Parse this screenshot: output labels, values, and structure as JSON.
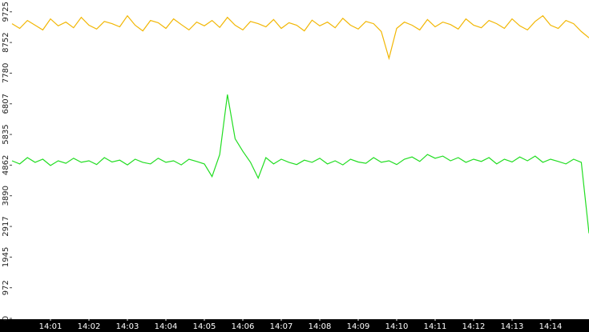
{
  "chart_data": {
    "type": "line",
    "x": [
      0,
      0.2,
      0.4,
      0.6,
      0.8,
      1,
      1.2,
      1.4,
      1.6,
      1.8,
      2,
      2.2,
      2.4,
      2.6,
      2.8,
      3,
      3.2,
      3.4,
      3.6,
      3.8,
      4,
      4.2,
      4.4,
      4.6,
      4.8,
      5,
      5.2,
      5.4,
      5.6,
      5.8,
      6,
      6.2,
      6.4,
      6.6,
      6.8,
      7,
      7.2,
      7.4,
      7.6,
      7.8,
      8,
      8.2,
      8.4,
      8.6,
      8.8,
      9,
      9.2,
      9.4,
      9.6,
      9.8,
      10,
      10.2,
      10.4,
      10.6,
      10.8,
      11,
      11.2,
      11.4,
      11.6,
      11.8,
      12,
      12.2,
      12.4,
      12.6,
      12.8,
      13,
      13.2,
      13.4,
      13.6,
      13.8,
      14,
      14.2,
      14.4,
      14.6,
      14.8,
      15
    ],
    "series": [
      {
        "color": "#f2b705",
        "values": [
          9350,
          9200,
          9450,
          9300,
          9150,
          9500,
          9280,
          9400,
          9220,
          9550,
          9300,
          9180,
          9420,
          9350,
          9250,
          9600,
          9300,
          9120,
          9450,
          9380,
          9200,
          9500,
          9320,
          9150,
          9400,
          9280,
          9450,
          9230,
          9550,
          9300,
          9150,
          9420,
          9350,
          9250,
          9480,
          9200,
          9380,
          9300,
          9120,
          9460,
          9280,
          9400,
          9220,
          9520,
          9300,
          9180,
          9420,
          9350,
          9100,
          8250,
          9200,
          9400,
          9300,
          9150,
          9480,
          9250,
          9400,
          9320,
          9180,
          9500,
          9300,
          9220,
          9450,
          9350,
          9200,
          9500,
          9280,
          9150,
          9420,
          9600,
          9300,
          9200,
          9450,
          9350,
          9100,
          8900
        ]
      },
      {
        "color": "#22dd22",
        "values": [
          5000,
          4900,
          5100,
          4950,
          5050,
          4850,
          5000,
          4920,
          5080,
          4950,
          5000,
          4880,
          5100,
          4960,
          5020,
          4870,
          5050,
          4950,
          4900,
          5080,
          4950,
          5000,
          4870,
          5050,
          4980,
          4900,
          4500,
          5200,
          7100,
          5700,
          5300,
          4950,
          4450,
          5100,
          4900,
          5050,
          4950,
          4880,
          5020,
          4950,
          5080,
          4900,
          5000,
          4870,
          5050,
          4960,
          4920,
          5100,
          4950,
          5000,
          4880,
          5050,
          5120,
          4980,
          5200,
          5080,
          5150,
          5000,
          5100,
          4950,
          5050,
          4980,
          5100,
          4900,
          5050,
          4960,
          5120,
          5000,
          5150,
          4950,
          5050,
          4980,
          4900,
          5050,
          4950,
          2700
        ]
      }
    ],
    "xlim": [
      0,
      15
    ],
    "xticks": [
      {
        "value": 1,
        "label": "14:01"
      },
      {
        "value": 2,
        "label": "14:02"
      },
      {
        "value": 3,
        "label": "14:03"
      },
      {
        "value": 4,
        "label": "14:04"
      },
      {
        "value": 5,
        "label": "14:05"
      },
      {
        "value": 6,
        "label": "14:06"
      },
      {
        "value": 7,
        "label": "14:07"
      },
      {
        "value": 8,
        "label": "14:08"
      },
      {
        "value": 9,
        "label": "14:09"
      },
      {
        "value": 10,
        "label": "14:10"
      },
      {
        "value": 11,
        "label": "14:11"
      },
      {
        "value": 12,
        "label": "14:12"
      },
      {
        "value": 13,
        "label": "14:13"
      },
      {
        "value": 14,
        "label": "14:14"
      }
    ],
    "ylim": [
      0,
      10100
    ],
    "yticks": [
      0,
      972,
      1945,
      2917,
      3890,
      4862,
      5835,
      6807,
      7780,
      8752,
      9725
    ]
  }
}
